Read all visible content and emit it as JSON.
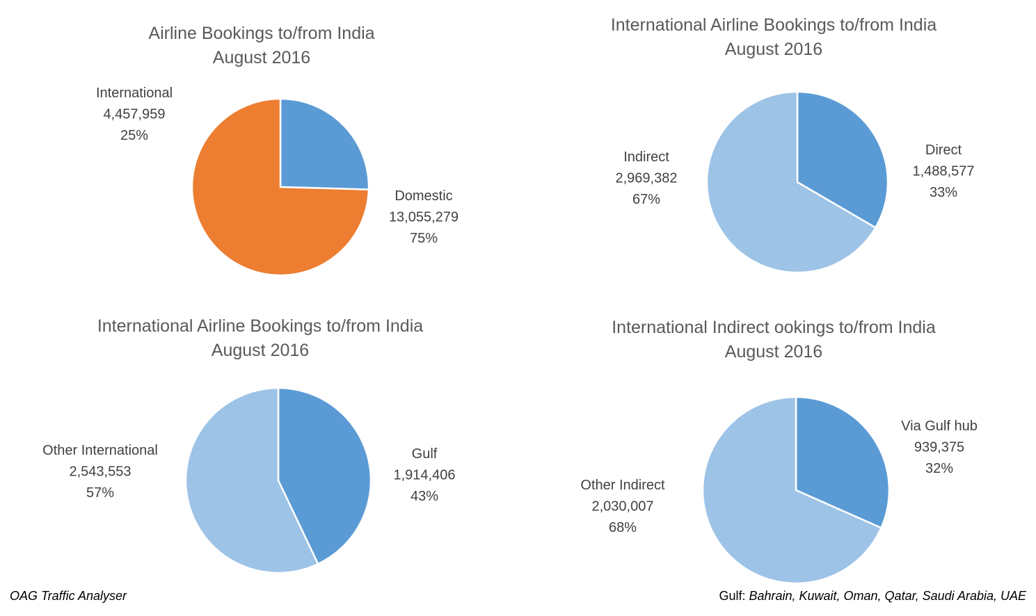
{
  "chart_data": [
    {
      "type": "pie",
      "title": [
        "Airline Bookings to/from India",
        "August 2016"
      ],
      "slices": [
        {
          "name": "International",
          "value": 4457959,
          "value_label": "4,457,959",
          "percent": "25%",
          "color": "#5B9BD5"
        },
        {
          "name": "Domestic",
          "value": 13055279,
          "value_label": "13,055,279",
          "percent": "75%",
          "color": "#ED7D31"
        }
      ]
    },
    {
      "type": "pie",
      "title": [
        "International Airline Bookings to/from India",
        "August 2016"
      ],
      "slices": [
        {
          "name": "Direct",
          "value": 1488577,
          "value_label": "1,488,577",
          "percent": "33%",
          "color": "#5B9BD5"
        },
        {
          "name": "Indirect",
          "value": 2969382,
          "value_label": "2,969,382",
          "percent": "67%",
          "color": "#9DC3E6"
        }
      ]
    },
    {
      "type": "pie",
      "title": [
        "International Airline Bookings to/from India",
        "August 2016"
      ],
      "slices": [
        {
          "name": "Gulf",
          "value": 1914406,
          "value_label": "1,914,406",
          "percent": "43%",
          "color": "#5B9BD5"
        },
        {
          "name": "Other International",
          "value": 2543553,
          "value_label": "2,543,553",
          "percent": "57%",
          "color": "#9DC3E6"
        }
      ]
    },
    {
      "type": "pie",
      "title": [
        "International Indirect ookings to/from India",
        "August 2016"
      ],
      "slices": [
        {
          "name": "Via Gulf hub",
          "value": 939375,
          "value_label": "939,375",
          "percent": "32%",
          "color": "#5B9BD5"
        },
        {
          "name": "Other Indirect",
          "value": 2030007,
          "value_label": "2,030,007",
          "percent": "68%",
          "color": "#9DC3E6"
        }
      ]
    }
  ],
  "footnotes": {
    "source": "OAG Traffic Analyser",
    "gulf_prefix": "Gulf: ",
    "gulf_list": "Bahrain, Kuwait, Oman, Qatar, Saudi Arabia, UAE"
  }
}
